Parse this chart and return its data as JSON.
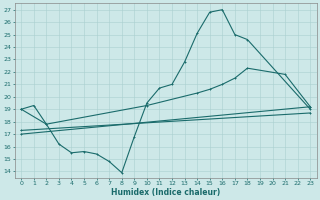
{
  "xlabel": "Humidex (Indice chaleur)",
  "xlim": [
    -0.5,
    23.5
  ],
  "ylim": [
    13.5,
    27.5
  ],
  "xticks": [
    0,
    1,
    2,
    3,
    4,
    5,
    6,
    7,
    8,
    9,
    10,
    11,
    12,
    13,
    14,
    15,
    16,
    17,
    18,
    19,
    20,
    21,
    22,
    23
  ],
  "yticks": [
    14,
    15,
    16,
    17,
    18,
    19,
    20,
    21,
    22,
    23,
    24,
    25,
    26,
    27
  ],
  "bg_color": "#cde8e8",
  "grid_color": "#aad0d0",
  "line_color": "#1a6b6b",
  "line1_x": [
    0,
    1,
    2,
    3,
    4,
    5,
    6,
    7,
    8,
    9,
    10,
    11,
    12,
    13,
    14,
    15,
    16,
    17,
    18,
    23
  ],
  "line1_y": [
    19.0,
    19.3,
    17.8,
    16.2,
    15.5,
    15.6,
    15.4,
    14.8,
    13.9,
    16.8,
    19.5,
    20.7,
    21.0,
    22.8,
    25.1,
    26.8,
    27.0,
    25.0,
    24.6,
    19.0
  ],
  "line2_x": [
    0,
    2,
    10,
    14,
    15,
    16,
    17,
    18,
    21,
    23
  ],
  "line2_y": [
    19.0,
    17.8,
    19.3,
    20.3,
    20.6,
    21.0,
    21.5,
    22.3,
    21.8,
    19.2
  ],
  "line3_x": [
    0,
    23
  ],
  "line3_y": [
    17.0,
    19.2
  ],
  "line4_x": [
    0,
    23
  ],
  "line4_y": [
    17.3,
    18.7
  ]
}
